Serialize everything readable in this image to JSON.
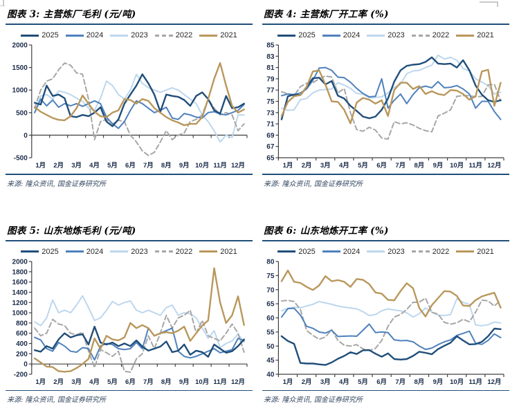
{
  "page": {
    "months": [
      "1月",
      "2月",
      "3月",
      "4月",
      "5月",
      "6月",
      "7月",
      "8月",
      "9月",
      "10月",
      "11月",
      "12月"
    ],
    "accent_rule_color": "#1F4E79",
    "series_colors": {
      "2025": "#1F4E79",
      "2024": "#4E81BD",
      "2023": "#BDD7EE",
      "2022": "#A6A6A6",
      "2021": "#B9975B"
    }
  },
  "chart_data": [
    {
      "type": "line",
      "title": "图表 3: 主营炼厂毛利 (元/吨)",
      "source": "来源: 隆众资讯, 国金证券研究所",
      "ylim": [
        -500,
        2000
      ],
      "yticks": [
        -500,
        0,
        500,
        1000,
        1500,
        2000
      ],
      "x_axis_at": 0,
      "grid": false,
      "legend_position": "top",
      "xlabels": [
        "1月",
        "2月",
        "3月",
        "4月",
        "5月",
        "6月",
        "7月",
        "8月",
        "9月",
        "10月",
        "11月",
        "12月"
      ],
      "series": [
        {
          "name": "2025",
          "color": "#1F4E79",
          "dash": false,
          "values": [
            720,
            680,
            1100,
            870,
            900,
            820,
            420,
            400,
            450,
            420,
            500,
            620,
            300,
            200,
            350,
            700,
            900,
            1100,
            1350,
            1150,
            900,
            520,
            900,
            870,
            850,
            780,
            650,
            870,
            950,
            800,
            550,
            480,
            870,
            600,
            620,
            700
          ]
        },
        {
          "name": "2024",
          "color": "#4E81BD",
          "dash": false,
          "values": [
            500,
            800,
            650,
            780,
            620,
            700,
            650,
            700,
            640,
            700,
            760,
            700,
            400,
            250,
            150,
            300,
            550,
            760,
            700,
            600,
            500,
            550,
            620,
            380,
            350,
            480,
            450,
            400,
            380,
            500,
            520,
            470,
            450,
            500,
            550,
            680
          ]
        },
        {
          "name": "2023",
          "color": "#BDD7EE",
          "dash": false,
          "values": [
            500,
            870,
            900,
            800,
            980,
            950,
            900,
            820,
            750,
            600,
            550,
            820,
            1200,
            1100,
            900,
            800,
            1000,
            1350,
            1150,
            1050,
            1000,
            950,
            1000,
            1050,
            1000,
            900,
            800,
            700,
            450,
            300,
            100,
            -150,
            0,
            -50,
            450,
            450
          ]
        },
        {
          "name": "2022",
          "color": "#A6A6A6",
          "dash": true,
          "values": [
            600,
            1000,
            1200,
            1250,
            1450,
            1600,
            1550,
            1380,
            1350,
            800,
            -100,
            300,
            350,
            250,
            330,
            300,
            0,
            -150,
            -350,
            -450,
            -380,
            -150,
            100,
            -100,
            0,
            50,
            300,
            350,
            450,
            800,
            600,
            450,
            500,
            450,
            100,
            250
          ]
        },
        {
          "name": "2021",
          "color": "#B9975B",
          "dash": false,
          "values": [
            620,
            520,
            450,
            380,
            340,
            330,
            420,
            600,
            880,
            700,
            520,
            420,
            400,
            500,
            550,
            800,
            780,
            700,
            800,
            760,
            600,
            500,
            400,
            330,
            280,
            220,
            250,
            250,
            400,
            800,
            1250,
            1600,
            1100,
            650,
            500,
            570
          ]
        }
      ]
    },
    {
      "type": "line",
      "title": "图表 4: 主营炼厂开工率 (%)",
      "source": "来源: 隆众资讯, 国金证券研究所",
      "ylim": [
        65,
        85
      ],
      "yticks": [
        65,
        67,
        69,
        71,
        73,
        75,
        77,
        79,
        81,
        83,
        85
      ],
      "x_axis_at": 65,
      "grid": false,
      "legend_position": "top",
      "xlabels": [
        "1月",
        "2月",
        "3月",
        "4月",
        "5月",
        "6月",
        "7月",
        "8月",
        "9月",
        "10月",
        "11月",
        "12月"
      ],
      "series": [
        {
          "name": "2025",
          "color": "#1F4E79",
          "dash": false,
          "values": [
            71.8,
            75.9,
            76.2,
            76.1,
            77.5,
            79.1,
            79.2,
            78.0,
            78.6,
            76.0,
            75.5,
            74.2,
            73.3,
            72.3,
            72.0,
            72.3,
            73.5,
            75.5,
            78.5,
            80.5,
            81.3,
            81.5,
            81.6,
            82.0,
            82.8,
            81.7,
            81.6,
            81.7,
            81.0,
            82.3,
            80.5,
            77.8,
            76.2,
            75.2,
            74.9,
            75.2
          ]
        },
        {
          "name": "2024",
          "color": "#4E81BD",
          "dash": false,
          "values": [
            76.0,
            76.3,
            76.2,
            76.5,
            77.2,
            78.7,
            80.9,
            81.0,
            80.5,
            79.3,
            79.2,
            78.4,
            77.3,
            76.4,
            75.8,
            75.9,
            79.0,
            73.8,
            75.2,
            76.3,
            74.6,
            76.2,
            77.4,
            77.7,
            77.4,
            78.5,
            77.4,
            77.5,
            77.8,
            77.2,
            76.3,
            73.8,
            75.0,
            75.0,
            73.2,
            71.8
          ]
        },
        {
          "name": "2023",
          "color": "#BDD7EE",
          "dash": false,
          "values": [
            73.8,
            73.4,
            73.5,
            75.3,
            75.5,
            76.5,
            77.0,
            77.1,
            77.2,
            78.3,
            77.9,
            77.3,
            76.4,
            76.3,
            75.6,
            75.7,
            75.8,
            76.5,
            77.5,
            78.0,
            79.9,
            80.4,
            80.5,
            81.0,
            81.4,
            83.2,
            82.5,
            82.8,
            82.3,
            80.8,
            80.4,
            79.0,
            78.4,
            77.8,
            76.3,
            76.6
          ]
        },
        {
          "name": "2022",
          "color": "#A6A6A6",
          "dash": true,
          "values": [
            76.7,
            76.3,
            76.0,
            77.6,
            78.2,
            78.3,
            79.0,
            79.5,
            79.3,
            76.5,
            77.3,
            73.0,
            70.0,
            69.7,
            70.4,
            69.9,
            68.5,
            68.3,
            71.4,
            71.0,
            71.2,
            70.8,
            70.2,
            69.8,
            69.6,
            72.4,
            72.9,
            73.5,
            75.9,
            76.0,
            76.0,
            75.8,
            75.9,
            77.9,
            78.0,
            75.1
          ]
        },
        {
          "name": "2021",
          "color": "#B9975B",
          "dash": false,
          "values": [
            72.4,
            74.9,
            75.9,
            76.1,
            77.6,
            80.3,
            80.5,
            78.0,
            75.0,
            74.9,
            73.5,
            71.1,
            74.8,
            75.6,
            75.3,
            74.6,
            75.2,
            72.4,
            77.0,
            78.3,
            78.3,
            77.2,
            77.7,
            76.3,
            76.8,
            76.3,
            76.1,
            77.0,
            76.9,
            76.3,
            75.3,
            75.9,
            80.3,
            80.6,
            74.2,
            78.3
          ]
        }
      ]
    },
    {
      "type": "line",
      "title": "图表 5: 山东地炼毛利 (元/吨)",
      "source": "来源: 隆众资讯, 国金证券研究所",
      "ylim": [
        -200,
        2000
      ],
      "yticks": [
        -200,
        0,
        200,
        400,
        600,
        800,
        1000,
        1200,
        1400,
        1600,
        1800,
        2000
      ],
      "x_axis_at": 0,
      "grid": false,
      "legend_position": "top",
      "xlabels": [
        "1月",
        "2月",
        "3月",
        "4月",
        "5月",
        "6月",
        "7月",
        "8月",
        "9月",
        "10月",
        "11月",
        "12月"
      ],
      "series": [
        {
          "name": "2025",
          "color": "#1F4E79",
          "dash": false,
          "values": [
            270,
            240,
            350,
            300,
            480,
            600,
            520,
            560,
            580,
            380,
            730,
            420,
            380,
            420,
            350,
            400,
            350,
            460,
            340,
            260,
            300,
            340,
            440,
            230,
            260,
            380,
            180,
            260,
            230,
            140,
            380,
            300,
            220,
            250,
            350,
            480
          ]
        },
        {
          "name": "2024",
          "color": "#4E81BD",
          "dash": false,
          "values": [
            520,
            470,
            300,
            250,
            420,
            350,
            250,
            230,
            320,
            300,
            80,
            350,
            400,
            380,
            300,
            280,
            300,
            420,
            300,
            700,
            550,
            600,
            650,
            700,
            250,
            150,
            120,
            150,
            200,
            250,
            300,
            220,
            250,
            280,
            500,
            450
          ]
        },
        {
          "name": "2023",
          "color": "#BDD7EE",
          "dash": false,
          "values": [
            820,
            750,
            900,
            1250,
            1000,
            1050,
            1000,
            1150,
            1330,
            1100,
            850,
            900,
            1050,
            1220,
            1150,
            1200,
            1230,
            1050,
            1000,
            1050,
            1000,
            950,
            1100,
            1150,
            950,
            1000,
            980,
            900,
            700,
            500,
            650,
            320,
            400,
            450,
            580,
            430
          ]
        },
        {
          "name": "2022",
          "color": "#A6A6A6",
          "dash": true,
          "values": [
            700,
            550,
            600,
            870,
            780,
            750,
            600,
            570,
            620,
            250,
            -70,
            280,
            220,
            150,
            250,
            -140,
            -160,
            100,
            200,
            550,
            300,
            600,
            950,
            700,
            900,
            950,
            1050,
            600,
            850,
            550,
            500,
            450,
            600,
            780,
            600,
            230
          ]
        },
        {
          "name": "2021",
          "color": "#B9975B",
          "dash": false,
          "values": [
            110,
            30,
            -50,
            -60,
            -140,
            -150,
            -140,
            -80,
            0,
            100,
            500,
            300,
            550,
            480,
            460,
            520,
            800,
            700,
            760,
            700,
            550,
            600,
            620,
            600,
            650,
            730,
            450,
            600,
            750,
            850,
            1870,
            1200,
            800,
            950,
            1320,
            760
          ]
        }
      ]
    },
    {
      "type": "line",
      "title": "图表 6: 山东地炼开工率 (%)",
      "source": "来源: 隆众资讯, 国金证券研究所",
      "ylim": [
        40,
        80
      ],
      "yticks": [
        40,
        45,
        50,
        55,
        60,
        65,
        70,
        75,
        80
      ],
      "x_axis_at": 40,
      "grid": false,
      "legend_position": "top",
      "xlabels": [
        "1月",
        "2月",
        "3月",
        "4月",
        "5月",
        "6月",
        "7月",
        "8月",
        "9月",
        "10月",
        "11月",
        "12月"
      ],
      "series": [
        {
          "name": "2025",
          "color": "#1F4E79",
          "dash": false,
          "values": [
            53.5,
            51.8,
            50.8,
            44.0,
            43.8,
            43.8,
            43.5,
            43.3,
            44.2,
            45.5,
            46.5,
            47.8,
            47.2,
            48.5,
            48.6,
            47.3,
            46.2,
            47.4,
            45.4,
            45.2,
            45.4,
            46.5,
            48.0,
            47.6,
            47.1,
            48.9,
            50.1,
            51.2,
            53.5,
            52.0,
            50.6,
            50.7,
            51.5,
            53.5,
            56.2,
            56.0
          ]
        },
        {
          "name": "2024",
          "color": "#4E81BD",
          "dash": false,
          "values": [
            60.3,
            63.3,
            63.4,
            61.0,
            57.0,
            56.3,
            55.0,
            54.6,
            55.6,
            53.4,
            53.5,
            53.6,
            53.5,
            55.6,
            57.8,
            54.8,
            55.0,
            54.8,
            52.2,
            51.9,
            52.0,
            51.5,
            50.0,
            48.8,
            49.3,
            50.5,
            51.5,
            52.2,
            53.8,
            54.5,
            55.3,
            51.0,
            50.6,
            52.0,
            54.3,
            53.0
          ]
        },
        {
          "name": "2023",
          "color": "#BDD7EE",
          "dash": false,
          "values": [
            62.5,
            63.4,
            63.8,
            63.6,
            64.2,
            64.8,
            65.8,
            65.3,
            64.8,
            64.2,
            63.8,
            63.5,
            63.2,
            62.2,
            60.8,
            61.2,
            62.5,
            63.2,
            62.8,
            62.5,
            61.8,
            60.3,
            61.5,
            63.5,
            62.0,
            61.0,
            60.8,
            61.2,
            66.8,
            65.5,
            64.8,
            57.5,
            57.2,
            57.6,
            58.5,
            58.2
          ]
        },
        {
          "name": "2022",
          "color": "#A6A6A6",
          "dash": true,
          "values": [
            66.0,
            66.2,
            65.8,
            63.0,
            55.5,
            53.8,
            52.4,
            53.2,
            55.8,
            52.0,
            50.3,
            50.0,
            50.5,
            49.0,
            48.4,
            49.2,
            52.0,
            57.0,
            60.3,
            61.2,
            63.0,
            65.5,
            65.6,
            67.0,
            62.0,
            61.3,
            58.4,
            57.8,
            58.2,
            59.5,
            58.6,
            62.0,
            66.3,
            66.0,
            64.2,
            66.3
          ]
        },
        {
          "name": "2021",
          "color": "#B9975B",
          "dash": false,
          "values": [
            73.0,
            76.8,
            72.8,
            72.4,
            71.0,
            69.9,
            71.5,
            74.8,
            73.0,
            73.4,
            72.8,
            71.0,
            73.8,
            73.5,
            72.0,
            69.0,
            68.6,
            66.4,
            66.2,
            69.5,
            72.3,
            70.5,
            63.5,
            60.5,
            64.5,
            67.0,
            69.5,
            69.3,
            67.8,
            64.4,
            64.2,
            66.3,
            67.6,
            68.3,
            68.9,
            63.6
          ]
        }
      ]
    }
  ]
}
